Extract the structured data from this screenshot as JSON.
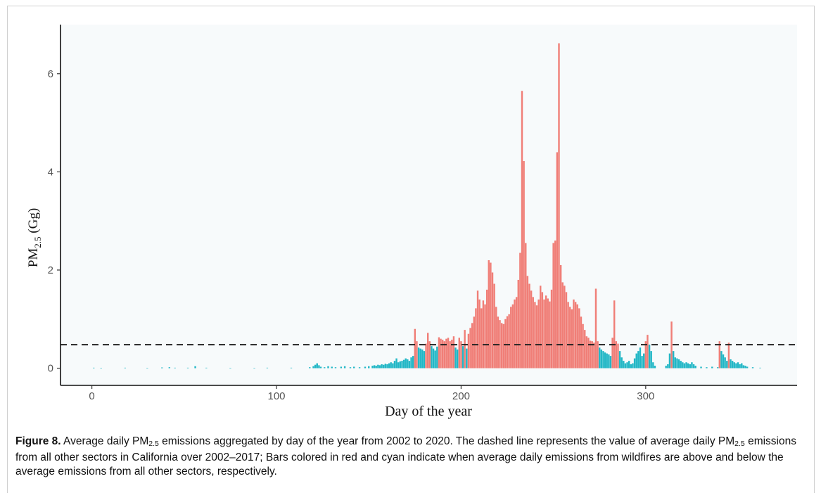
{
  "chart_data": {
    "type": "bar",
    "xlabel": "Day of the year",
    "ylabel_main": "PM",
    "ylabel_sub": "2.5",
    "ylabel_unit": " (Gg)",
    "xlim": [
      -17,
      382
    ],
    "ylim": [
      -0.35,
      7.0
    ],
    "x_ticks": [
      0,
      100,
      200,
      300
    ],
    "y_ticks": [
      0,
      2,
      4,
      6
    ],
    "threshold": 0.48,
    "colors": {
      "above": "#f07e77",
      "below": "#22b7c6",
      "dashed": "#222222",
      "panel": "#f7fafb"
    },
    "points": [
      [
        1,
        0.01
      ],
      [
        5,
        0.005
      ],
      [
        18,
        0.01
      ],
      [
        30,
        0.005
      ],
      [
        38,
        0.015
      ],
      [
        42,
        0.02
      ],
      [
        45,
        0.01
      ],
      [
        52,
        0.01
      ],
      [
        56,
        0.04
      ],
      [
        62,
        0.01
      ],
      [
        75,
        0.005
      ],
      [
        88,
        0.005
      ],
      [
        95,
        0.01
      ],
      [
        108,
        0.01
      ],
      [
        118,
        0.02
      ],
      [
        120,
        0.04
      ],
      [
        121,
        0.07
      ],
      [
        122,
        0.1
      ],
      [
        123,
        0.06
      ],
      [
        124,
        0.03
      ],
      [
        126,
        0.02
      ],
      [
        128,
        0.04
      ],
      [
        130,
        0.03
      ],
      [
        132,
        0.02
      ],
      [
        135,
        0.03
      ],
      [
        137,
        0.04
      ],
      [
        140,
        0.02
      ],
      [
        142,
        0.03
      ],
      [
        145,
        0.02
      ],
      [
        148,
        0.03
      ],
      [
        150,
        0.04
      ],
      [
        152,
        0.05
      ],
      [
        153,
        0.06
      ],
      [
        154,
        0.05
      ],
      [
        155,
        0.07
      ],
      [
        156,
        0.06
      ],
      [
        157,
        0.08
      ],
      [
        158,
        0.07
      ],
      [
        159,
        0.09
      ],
      [
        160,
        0.08
      ],
      [
        161,
        0.1
      ],
      [
        162,
        0.12
      ],
      [
        163,
        0.1
      ],
      [
        164,
        0.15
      ],
      [
        165,
        0.2
      ],
      [
        166,
        0.12
      ],
      [
        167,
        0.14
      ],
      [
        168,
        0.15
      ],
      [
        169,
        0.17
      ],
      [
        170,
        0.2
      ],
      [
        171,
        0.18
      ],
      [
        172,
        0.15
      ],
      [
        173,
        0.22
      ],
      [
        174,
        0.25
      ],
      [
        175,
        0.8
      ],
      [
        176,
        0.55
      ],
      [
        177,
        0.42
      ],
      [
        178,
        0.4
      ],
      [
        179,
        0.38
      ],
      [
        180,
        0.35
      ],
      [
        181,
        0.5
      ],
      [
        182,
        0.72
      ],
      [
        183,
        0.55
      ],
      [
        184,
        0.45
      ],
      [
        185,
        0.4
      ],
      [
        186,
        0.36
      ],
      [
        187,
        0.44
      ],
      [
        188,
        0.63
      ],
      [
        189,
        0.6
      ],
      [
        190,
        0.58
      ],
      [
        191,
        0.55
      ],
      [
        192,
        0.6
      ],
      [
        193,
        0.62
      ],
      [
        194,
        0.55
      ],
      [
        195,
        0.58
      ],
      [
        196,
        0.65
      ],
      [
        197,
        0.42
      ],
      [
        198,
        0.38
      ],
      [
        199,
        0.62
      ],
      [
        200,
        0.55
      ],
      [
        201,
        0.45
      ],
      [
        202,
        0.78
      ],
      [
        203,
        0.4
      ],
      [
        204,
        0.7
      ],
      [
        205,
        0.82
      ],
      [
        206,
        0.92
      ],
      [
        207,
        1.05
      ],
      [
        208,
        1.22
      ],
      [
        209,
        1.58
      ],
      [
        210,
        1.4
      ],
      [
        211,
        1.22
      ],
      [
        212,
        1.38
      ],
      [
        213,
        1.3
      ],
      [
        214,
        1.6
      ],
      [
        215,
        2.2
      ],
      [
        216,
        2.15
      ],
      [
        217,
        1.95
      ],
      [
        218,
        1.72
      ],
      [
        219,
        1.25
      ],
      [
        220,
        1.05
      ],
      [
        221,
        0.98
      ],
      [
        222,
        0.92
      ],
      [
        223,
        0.9
      ],
      [
        224,
        1.0
      ],
      [
        225,
        1.06
      ],
      [
        226,
        1.1
      ],
      [
        227,
        1.25
      ],
      [
        228,
        1.3
      ],
      [
        229,
        1.4
      ],
      [
        230,
        1.45
      ],
      [
        231,
        1.8
      ],
      [
        232,
        2.35
      ],
      [
        233,
        5.65
      ],
      [
        234,
        4.22
      ],
      [
        235,
        2.55
      ],
      [
        236,
        1.88
      ],
      [
        237,
        1.72
      ],
      [
        238,
        1.58
      ],
      [
        239,
        1.45
      ],
      [
        240,
        1.35
      ],
      [
        241,
        1.28
      ],
      [
        242,
        1.4
      ],
      [
        243,
        1.68
      ],
      [
        244,
        1.55
      ],
      [
        245,
        1.4
      ],
      [
        246,
        1.48
      ],
      [
        247,
        1.42
      ],
      [
        248,
        1.36
      ],
      [
        249,
        1.6
      ],
      [
        250,
        2.55
      ],
      [
        251,
        2.6
      ],
      [
        252,
        4.4
      ],
      [
        253,
        6.62
      ],
      [
        254,
        2.1
      ],
      [
        255,
        1.75
      ],
      [
        256,
        1.68
      ],
      [
        257,
        1.55
      ],
      [
        258,
        1.35
      ],
      [
        259,
        1.25
      ],
      [
        260,
        1.2
      ],
      [
        261,
        1.4
      ],
      [
        262,
        1.35
      ],
      [
        263,
        1.3
      ],
      [
        264,
        1.22
      ],
      [
        265,
        1.05
      ],
      [
        266,
        0.9
      ],
      [
        267,
        0.78
      ],
      [
        268,
        0.65
      ],
      [
        269,
        0.62
      ],
      [
        270,
        0.56
      ],
      [
        271,
        0.55
      ],
      [
        272,
        0.52
      ],
      [
        273,
        1.62
      ],
      [
        274,
        0.55
      ],
      [
        275,
        0.42
      ],
      [
        276,
        0.38
      ],
      [
        277,
        0.35
      ],
      [
        278,
        0.32
      ],
      [
        279,
        0.3
      ],
      [
        280,
        0.28
      ],
      [
        281,
        0.25
      ],
      [
        282,
        0.62
      ],
      [
        283,
        1.38
      ],
      [
        284,
        0.55
      ],
      [
        285,
        0.5
      ],
      [
        286,
        0.35
      ],
      [
        287,
        0.22
      ],
      [
        288,
        0.15
      ],
      [
        289,
        0.1
      ],
      [
        290,
        0.12
      ],
      [
        291,
        0.15
      ],
      [
        292,
        0.08
      ],
      [
        293,
        0.1
      ],
      [
        294,
        0.2
      ],
      [
        295,
        0.3
      ],
      [
        296,
        0.35
      ],
      [
        297,
        0.42
      ],
      [
        298,
        0.25
      ],
      [
        299,
        0.3
      ],
      [
        300,
        0.55
      ],
      [
        301,
        0.68
      ],
      [
        302,
        0.48
      ],
      [
        303,
        0.35
      ],
      [
        304,
        0.12
      ],
      [
        305,
        0.05
      ],
      [
        311,
        0.05
      ],
      [
        312,
        0.08
      ],
      [
        313,
        0.3
      ],
      [
        314,
        0.95
      ],
      [
        315,
        0.35
      ],
      [
        316,
        0.22
      ],
      [
        317,
        0.2
      ],
      [
        318,
        0.18
      ],
      [
        319,
        0.15
      ],
      [
        320,
        0.12
      ],
      [
        321,
        0.1
      ],
      [
        322,
        0.12
      ],
      [
        323,
        0.1
      ],
      [
        324,
        0.08
      ],
      [
        325,
        0.12
      ],
      [
        326,
        0.08
      ],
      [
        327,
        0.05
      ],
      [
        330,
        0.03
      ],
      [
        333,
        0.02
      ],
      [
        336,
        0.03
      ],
      [
        339,
        0.02
      ],
      [
        340,
        0.55
      ],
      [
        341,
        0.35
      ],
      [
        342,
        0.28
      ],
      [
        343,
        0.22
      ],
      [
        344,
        0.15
      ],
      [
        345,
        0.52
      ],
      [
        346,
        0.18
      ],
      [
        347,
        0.15
      ],
      [
        348,
        0.12
      ],
      [
        349,
        0.1
      ],
      [
        350,
        0.12
      ],
      [
        351,
        0.08
      ],
      [
        352,
        0.1
      ],
      [
        353,
        0.06
      ],
      [
        354,
        0.05
      ],
      [
        355,
        0.03
      ],
      [
        358,
        0.02
      ],
      [
        362,
        0.01
      ]
    ]
  },
  "caption": {
    "label": "Figure 8.",
    "t1": " Average daily PM",
    "sub1": "2.5",
    "t2": " emissions aggregated by day of the year from 2002 to 2020. The dashed line represents the value of average daily PM",
    "sub2": "2.5",
    "t3": " emissions from all other sectors in California over 2002–2017; Bars colored in red and cyan indicate when average daily emissions from wildfires are above and below the average emissions from all other sectors, respectively."
  }
}
